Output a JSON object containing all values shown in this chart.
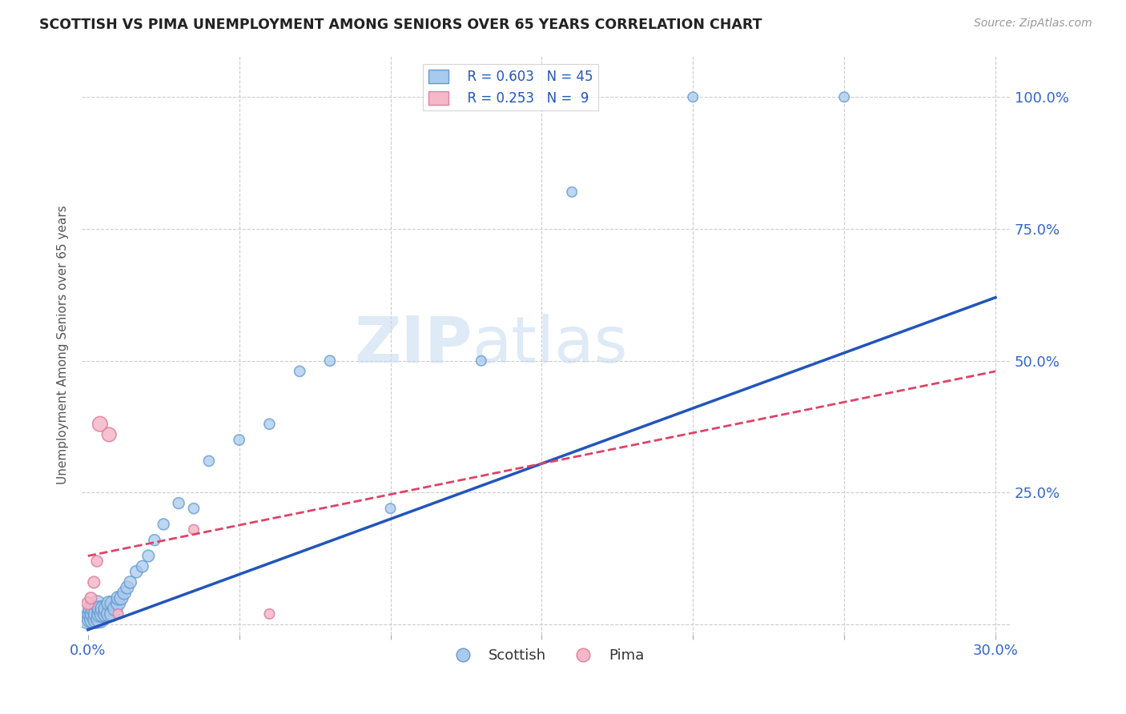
{
  "title": "SCOTTISH VS PIMA UNEMPLOYMENT AMONG SENIORS OVER 65 YEARS CORRELATION CHART",
  "source": "Source: ZipAtlas.com",
  "ylabel": "Unemployment Among Seniors over 65 years",
  "xlim": [
    -0.002,
    0.305
  ],
  "ylim": [
    -0.02,
    1.08
  ],
  "xticks": [
    0.0,
    0.05,
    0.1,
    0.15,
    0.2,
    0.25,
    0.3
  ],
  "xticklabels": [
    "0.0%",
    "",
    "",
    "",
    "",
    "",
    "30.0%"
  ],
  "yticks": [
    0.0,
    0.25,
    0.5,
    0.75,
    1.0
  ],
  "right_yticklabels": [
    "",
    "25.0%",
    "50.0%",
    "75.0%",
    "100.0%"
  ],
  "legend_r_blue": "R = 0.603",
  "legend_n_blue": "N = 45",
  "legend_r_pink": "R = 0.253",
  "legend_n_pink": "N =  9",
  "blue_color": "#A8CAEE",
  "pink_color": "#F5B8C8",
  "blue_edge": "#6699CC",
  "pink_edge": "#E080A0",
  "trendline_blue": "#2255BB",
  "trendline_pink": "#DD4466",
  "watermark_color": "#C8DCF0",
  "grid_color": "#CCCCCC",
  "scottish_x": [
    0.0,
    0.001,
    0.001,
    0.001,
    0.002,
    0.002,
    0.002,
    0.003,
    0.003,
    0.003,
    0.004,
    0.004,
    0.004,
    0.005,
    0.005,
    0.006,
    0.006,
    0.007,
    0.007,
    0.008,
    0.008,
    0.009,
    0.01,
    0.01,
    0.011,
    0.012,
    0.013,
    0.014,
    0.016,
    0.018,
    0.02,
    0.022,
    0.025,
    0.03,
    0.035,
    0.04,
    0.05,
    0.06,
    0.07,
    0.08,
    0.1,
    0.13,
    0.16,
    0.2,
    0.25
  ],
  "scottish_y": [
    0.01,
    0.01,
    0.02,
    0.03,
    0.01,
    0.02,
    0.03,
    0.01,
    0.02,
    0.04,
    0.01,
    0.02,
    0.03,
    0.02,
    0.03,
    0.02,
    0.03,
    0.02,
    0.04,
    0.02,
    0.04,
    0.03,
    0.04,
    0.05,
    0.05,
    0.06,
    0.07,
    0.08,
    0.1,
    0.11,
    0.13,
    0.16,
    0.19,
    0.23,
    0.22,
    0.31,
    0.35,
    0.38,
    0.48,
    0.5,
    0.22,
    0.5,
    0.82,
    1.0,
    1.0
  ],
  "scottish_sizes": [
    300,
    250,
    220,
    200,
    280,
    240,
    200,
    260,
    230,
    200,
    240,
    210,
    190,
    220,
    190,
    200,
    180,
    190,
    170,
    180,
    160,
    170,
    160,
    150,
    150,
    140,
    130,
    120,
    120,
    110,
    110,
    100,
    100,
    100,
    90,
    90,
    90,
    90,
    90,
    90,
    80,
    80,
    80,
    80,
    80
  ],
  "pima_x": [
    0.0,
    0.001,
    0.002,
    0.003,
    0.004,
    0.007,
    0.01,
    0.035,
    0.06
  ],
  "pima_y": [
    0.04,
    0.05,
    0.08,
    0.12,
    0.38,
    0.36,
    0.02,
    0.18,
    0.02
  ],
  "pima_sizes": [
    120,
    110,
    110,
    100,
    180,
    160,
    80,
    80,
    80
  ],
  "blue_trendline_x0": 0.0,
  "blue_trendline_y0": -0.01,
  "blue_trendline_x1": 0.3,
  "blue_trendline_y1": 0.62,
  "pink_trendline_x0": 0.0,
  "pink_trendline_y0": 0.13,
  "pink_trendline_x1": 0.3,
  "pink_trendline_y1": 0.48
}
